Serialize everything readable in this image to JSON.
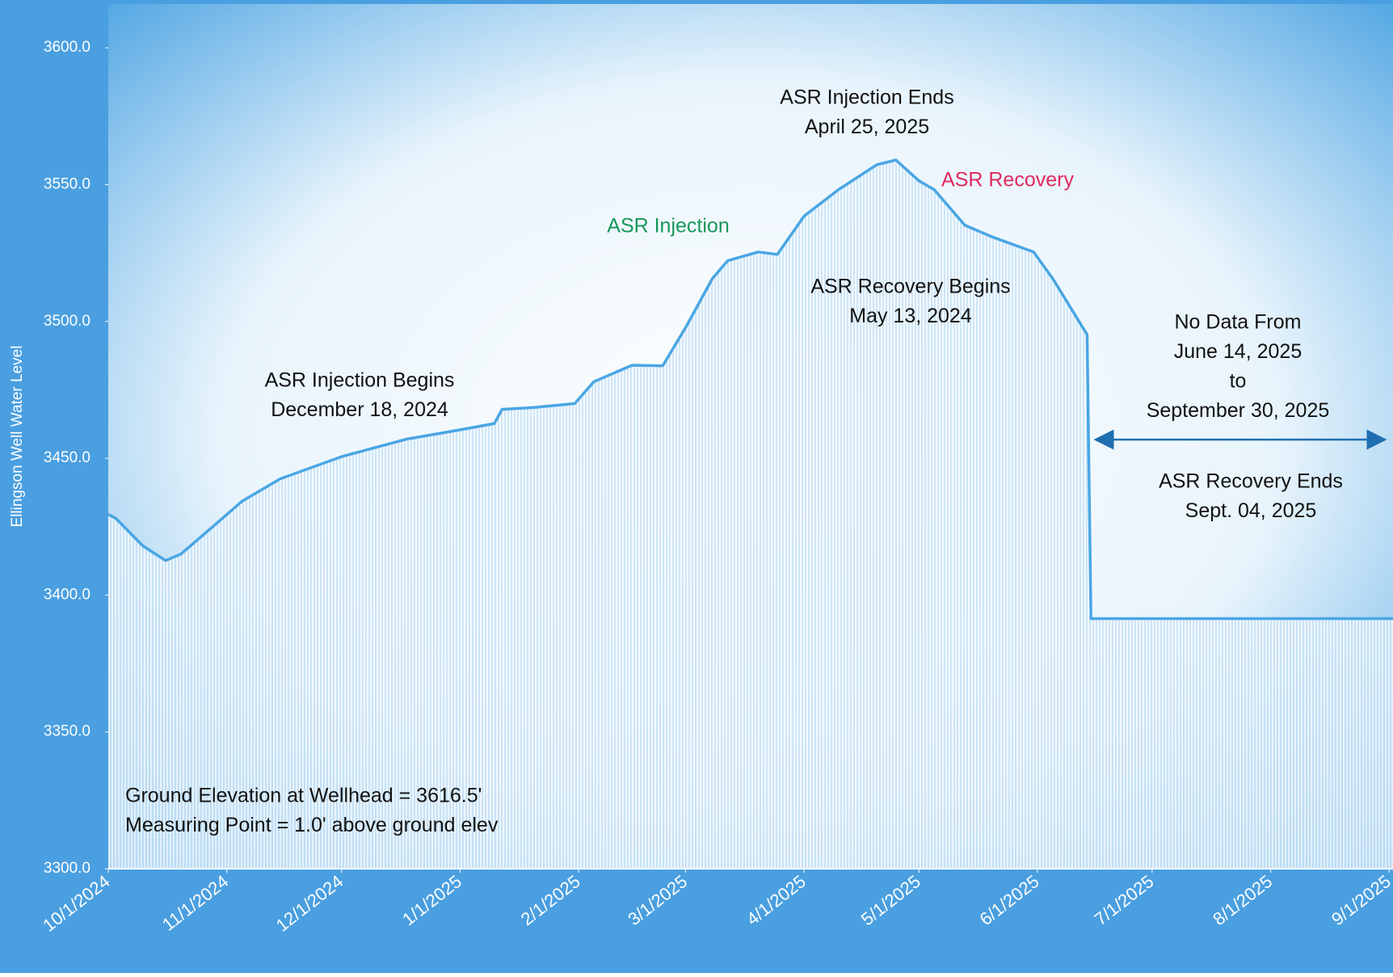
{
  "chart_data": {
    "type": "area",
    "y_label": "Ellingson Well Water Level",
    "x": [
      "2024-10-01",
      "2024-10-03",
      "2024-10-10",
      "2024-10-16",
      "2024-10-20",
      "2024-10-28",
      "2024-11-05",
      "2024-11-15",
      "2024-12-01",
      "2024-12-18",
      "2025-01-01",
      "2025-01-10",
      "2025-01-12",
      "2025-01-20",
      "2025-01-31",
      "2025-02-05",
      "2025-02-15",
      "2025-02-23",
      "2025-03-01",
      "2025-03-08",
      "2025-03-12",
      "2025-03-20",
      "2025-03-25",
      "2025-04-01",
      "2025-04-10",
      "2025-04-20",
      "2025-04-25",
      "2025-05-01",
      "2025-05-05",
      "2025-05-13",
      "2025-05-20",
      "2025-05-31",
      "2025-06-05",
      "2025-06-14",
      "2025-06-15",
      "2025-09-02"
    ],
    "series": [
      {
        "name": "Ellingson Well Water Level",
        "color": "#4aa6e4",
        "values": [
          3429.5,
          3428,
          3418,
          3412.6,
          3415,
          3424.6,
          3434.3,
          3442.5,
          3450.6,
          3457,
          3460.4,
          3462.7,
          3467.9,
          3468.5,
          3470,
          3478,
          3484,
          3483.8,
          3497.8,
          3515.7,
          3522.2,
          3525.4,
          3524.5,
          3538.5,
          3548.2,
          3557.3,
          3559,
          3551.4,
          3548.2,
          3535.2,
          3531,
          3525.4,
          3515.7,
          3495.2,
          3391.4,
          3391.4
        ]
      }
    ],
    "xlim": [
      "2024-10-01",
      "2025-09-02"
    ],
    "xticks": [
      {
        "value": "2024-10-01",
        "label": "10/1/2024"
      },
      {
        "value": "2024-11-01",
        "label": "11/1/2024"
      },
      {
        "value": "2024-12-01",
        "label": "12/1/2024"
      },
      {
        "value": "2025-01-01",
        "label": "1/1/2025"
      },
      {
        "value": "2025-02-01",
        "label": "2/1/2025"
      },
      {
        "value": "2025-03-01",
        "label": "3/1/2025"
      },
      {
        "value": "2025-04-01",
        "label": "4/1/2025"
      },
      {
        "value": "2025-05-01",
        "label": "5/1/2025"
      },
      {
        "value": "2025-06-01",
        "label": "6/1/2025"
      },
      {
        "value": "2025-07-01",
        "label": "7/1/2025"
      },
      {
        "value": "2025-08-01",
        "label": "8/1/2025"
      },
      {
        "value": "2025-09-01",
        "label": "9/1/2025"
      }
    ],
    "ylim": [
      3300,
      3616
    ],
    "yticks": [
      {
        "value": 3300,
        "label": "3300.0"
      },
      {
        "value": 3350,
        "label": "3350.0"
      },
      {
        "value": 3400,
        "label": "3400.0"
      },
      {
        "value": 3450,
        "label": "3450.0"
      },
      {
        "value": 3500,
        "label": "3500.0"
      },
      {
        "value": 3550,
        "label": "3550.0"
      },
      {
        "value": 3600,
        "label": "3600.0"
      }
    ],
    "annotations": [
      {
        "lines": [
          "ASR Injection Ends",
          "April 25, 2025"
        ]
      },
      {
        "lines": [
          "ASR Recovery"
        ],
        "color": "#e0285c"
      },
      {
        "lines": [
          "ASR Injection"
        ],
        "color": "#16975a"
      },
      {
        "lines": [
          "ASR Recovery Begins",
          "May 13, 2024"
        ]
      },
      {
        "lines": [
          "ASR Injection Begins",
          "December 18, 2024"
        ]
      },
      {
        "lines": [
          "No Data From",
          "June 14, 2025",
          "to",
          "September 30, 2025"
        ]
      },
      {
        "lines": [
          "ASR Recovery Ends",
          "Sept. 04, 2025"
        ]
      },
      {
        "lines": [
          "Ground Elevation at Wellhead = 3616.5'",
          "Measuring Point = 1.0' above ground elev"
        ]
      }
    ]
  }
}
